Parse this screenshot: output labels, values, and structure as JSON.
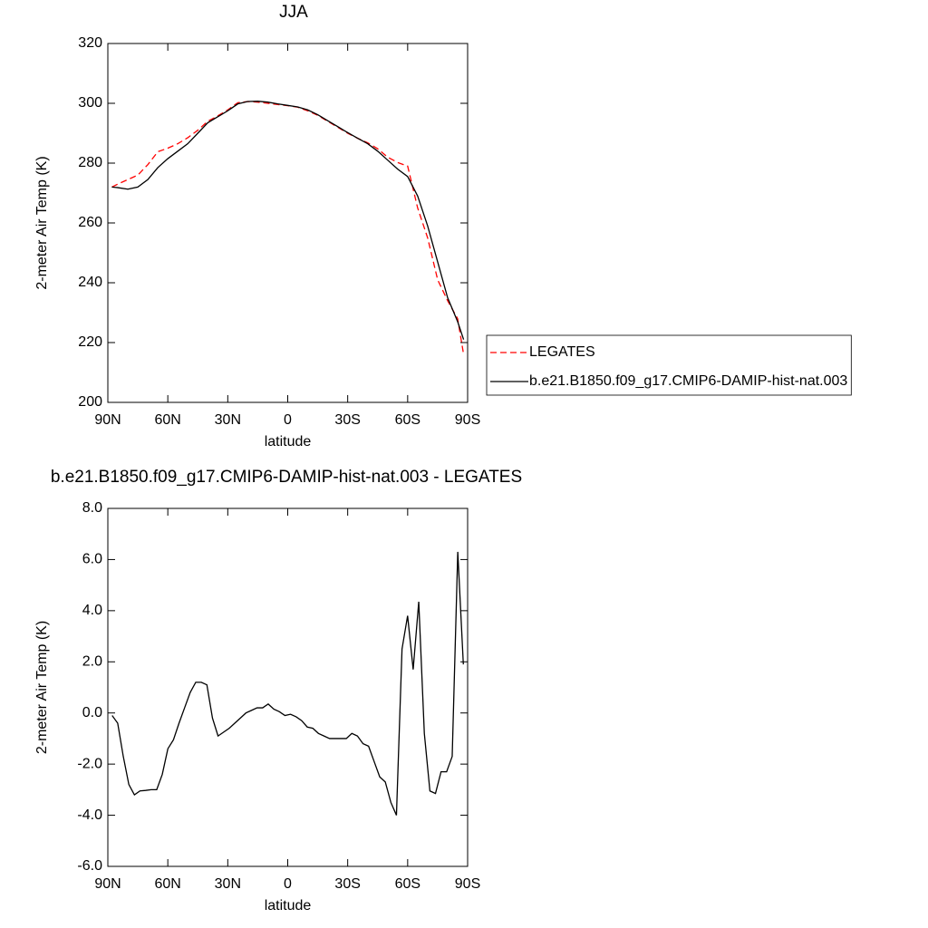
{
  "chart_data": [
    {
      "type": "line",
      "title": "JJA",
      "x_label": "latitude",
      "y_label": "2-meter Air Temp (K)",
      "x": [
        88,
        85,
        80,
        75,
        70,
        65,
        60,
        55,
        50,
        45,
        40,
        35,
        30,
        25,
        20,
        15,
        10,
        5,
        0,
        -5,
        -10,
        -15,
        -20,
        -25,
        -30,
        -35,
        -40,
        -45,
        -50,
        -55,
        -60,
        -65,
        -70,
        -75,
        -80,
        -85,
        -88
      ],
      "series": [
        {
          "name": "LEGATES",
          "color": "#ff0000",
          "line_style": "dashed",
          "values": [
            272,
            273,
            274.5,
            276,
            279.5,
            283.8,
            285,
            286.5,
            288.5,
            291,
            294,
            295.8,
            297.8,
            300.2,
            300.6,
            300.4,
            300,
            299.6,
            299.2,
            298.7,
            297.5,
            296,
            294,
            292,
            290,
            288.3,
            286.8,
            284.8,
            282,
            280.2,
            279,
            265,
            255,
            241,
            234,
            228,
            216
          ]
        },
        {
          "name": "b.e21.B1850.f09_g17.CMIP6-DAMIP-hist-nat.003",
          "color": "#000000",
          "line_style": "solid",
          "values": [
            272,
            271.8,
            271.3,
            272,
            274.5,
            278.5,
            281.5,
            284,
            286.5,
            290,
            293.5,
            295.5,
            297.5,
            299.8,
            300.6,
            300.7,
            300.4,
            299.8,
            299.3,
            298.8,
            297.8,
            296.2,
            294.2,
            292.2,
            290.2,
            288.3,
            286.5,
            284,
            281,
            278,
            275.5,
            269,
            259,
            247,
            235,
            227,
            221
          ]
        }
      ],
      "xlim": [
        90,
        -90
      ],
      "xticks": [
        {
          "value": 90,
          "label": "90N"
        },
        {
          "value": 60,
          "label": "60N"
        },
        {
          "value": 30,
          "label": "30N"
        },
        0,
        {
          "value": -30,
          "label": "30S"
        },
        {
          "value": -60,
          "label": "60S"
        },
        {
          "value": -90,
          "label": "90S"
        }
      ],
      "ylim": [
        200,
        320
      ],
      "yticks": [
        200,
        220,
        240,
        260,
        280,
        300,
        320
      ],
      "legend": "right"
    },
    {
      "type": "line",
      "title": "b.e21.B1850.f09_g17.CMIP6-DAMIP-hist-nat.003 - LEGATES",
      "x_label": "latitude",
      "y_label": "2-meter Air Temp (K)",
      "x": [
        87.86,
        85.07,
        82.28,
        79.49,
        76.7,
        73.92,
        71.13,
        68.34,
        65.55,
        62.76,
        59.97,
        57.18,
        54.39,
        51.6,
        48.81,
        46.02,
        43.23,
        40.45,
        37.66,
        34.87,
        32.08,
        29.29,
        26.5,
        23.71,
        20.92,
        18.14,
        15.35,
        12.56,
        9.77,
        6.98,
        4.19,
        1.4,
        -1.4,
        -4.19,
        -6.98,
        -9.77,
        -12.56,
        -15.35,
        -18.14,
        -20.92,
        -23.71,
        -26.5,
        -29.29,
        -32.08,
        -34.87,
        -37.66,
        -40.45,
        -43.23,
        -46.02,
        -48.81,
        -51.6,
        -54.39,
        -57.18,
        -59.97,
        -62.76,
        -65.55,
        -68.34,
        -71.13,
        -73.92,
        -76.7,
        -79.49,
        -82.28,
        -85.07,
        -87.86
      ],
      "series": [
        {
          "color": "#000000",
          "line_style": "solid",
          "values": [
            -0.1,
            -0.4,
            -1.7,
            -2.8,
            -3.2,
            -3.05,
            -3.03,
            -3.0,
            -3.0,
            -2.4,
            -1.4,
            -1.05,
            -0.4,
            0.2,
            0.8,
            1.2,
            1.2,
            1.1,
            -0.2,
            -0.9,
            -0.75,
            -0.6,
            -0.4,
            -0.2,
            0,
            0.1,
            0.2,
            0.2,
            0.35,
            0.15,
            0.05,
            -0.1,
            -0.05,
            -0.15,
            -0.3,
            -0.55,
            -0.6,
            -0.8,
            -0.9,
            -1.0,
            -1.0,
            -1.0,
            -1.0,
            -0.8,
            -0.9,
            -1.2,
            -1.3,
            -1.9,
            -2.5,
            -2.7,
            -3.5,
            -4.0,
            2.5,
            3.8,
            1.7,
            4.35,
            -0.8,
            -3.05,
            -3.15,
            -2.3,
            -2.3,
            -1.7,
            6.3,
            1.9
          ]
        }
      ],
      "xlim": [
        90,
        -90
      ],
      "xticks": [
        {
          "value": 90,
          "label": "90N"
        },
        {
          "value": 60,
          "label": "60N"
        },
        {
          "value": 30,
          "label": "30N"
        },
        0,
        {
          "value": -30,
          "label": "30S"
        },
        {
          "value": -60,
          "label": "60S"
        },
        {
          "value": -90,
          "label": "90S"
        }
      ],
      "ylim": [
        -6,
        8
      ],
      "yticks": [
        {
          "value": -6,
          "label": "-6.0"
        },
        {
          "value": -4,
          "label": "-4.0"
        },
        {
          "value": -2,
          "label": "-2.0"
        },
        {
          "value": 0,
          "label": "0.0"
        },
        {
          "value": 2,
          "label": "2.0"
        },
        {
          "value": 4,
          "label": "4.0"
        },
        {
          "value": 6,
          "label": "6.0"
        },
        {
          "value": 8,
          "label": "8.0"
        }
      ]
    }
  ]
}
